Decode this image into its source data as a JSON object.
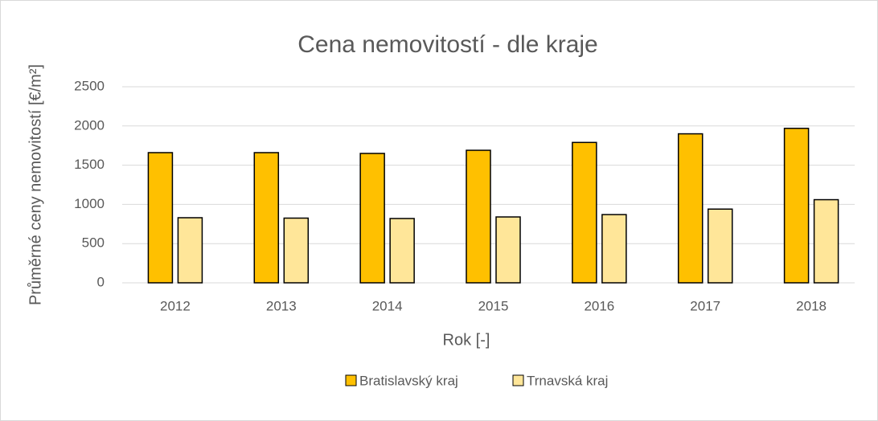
{
  "chart_data": {
    "type": "bar",
    "title": "Cena nemovitostí - dle kraje",
    "x_label": "Rok [-]",
    "y_label": "Průměrné ceny nemovitostí [€/m²]",
    "categories": [
      "2012",
      "2013",
      "2014",
      "2015",
      "2016",
      "2017",
      "2018"
    ],
    "series": [
      {
        "name": "Bratislavský kraj",
        "color": "#ffc000",
        "values": [
          1660,
          1660,
          1650,
          1690,
          1790,
          1900,
          1970
        ]
      },
      {
        "name": "Trnavská kraj",
        "color": "#ffe699",
        "values": [
          830,
          825,
          820,
          840,
          870,
          940,
          1060
        ]
      }
    ],
    "ylim": [
      0,
      2500
    ],
    "yticks": [
      0,
      500,
      1000,
      1500,
      2000,
      2500
    ],
    "grid": true,
    "legend": "bottom"
  }
}
